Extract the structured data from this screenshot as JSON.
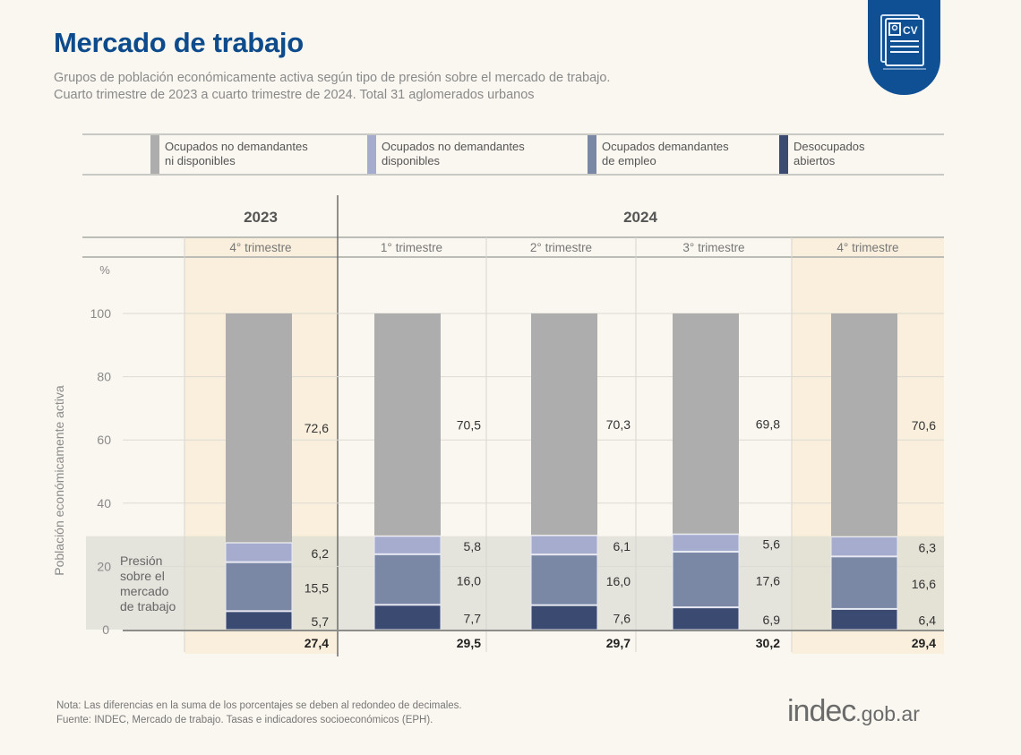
{
  "header": {
    "title": "Mercado de trabajo",
    "subtitle_line1": "Grupos de población económicamente activa según tipo de presión sobre el mercado de trabajo.",
    "subtitle_line2": "Cuarto trimestre de 2023 a cuarto trimestre de 2024. Total 31 aglomerados urbanos",
    "badge_icon": "cv-document-icon",
    "badge_text": "CV"
  },
  "legend": [
    {
      "label": "Ocupados no demandantes\nni disponibles",
      "color": "#adadad"
    },
    {
      "label": "Ocupados no demandantes\ndisponibles",
      "color": "#a6acce"
    },
    {
      "label": "Ocupados demandantes\nde empleo",
      "color": "#7a88a6"
    },
    {
      "label": "Desocupados\nabiertos",
      "color": "#3a4a70"
    }
  ],
  "chart_data": {
    "type": "bar",
    "stacked": true,
    "title": "Mercado de trabajo",
    "ylabel": "Población económicamente activa",
    "yunit": "%",
    "ylim": [
      0,
      100
    ],
    "yticks": [
      0,
      20,
      40,
      60,
      80,
      100
    ],
    "grid": true,
    "legend_position": "top",
    "year_groups": [
      {
        "label": "2023",
        "quarters": 1
      },
      {
        "label": "2024",
        "quarters": 4
      }
    ],
    "categories": [
      "4° trimestre",
      "1° trimestre",
      "2° trimestre",
      "3° trimestre",
      "4° trimestre"
    ],
    "highlighted_categories": [
      0,
      4
    ],
    "series": [
      {
        "name": "Desocupados abiertos",
        "color": "#3a4a70",
        "values": [
          5.7,
          7.7,
          7.6,
          6.9,
          6.4
        ]
      },
      {
        "name": "Ocupados demandantes de empleo",
        "color": "#7a88a6",
        "values": [
          15.5,
          16.0,
          16.0,
          17.6,
          16.6
        ]
      },
      {
        "name": "Ocupados no demandantes disponibles",
        "color": "#a6acce",
        "values": [
          6.2,
          5.8,
          6.1,
          5.6,
          6.3
        ]
      },
      {
        "name": "Ocupados no demandantes ni disponibles",
        "color": "#adadad",
        "values": [
          72.6,
          70.5,
          70.3,
          69.8,
          70.6
        ]
      }
    ],
    "pressure_totals": [
      27.4,
      29.5,
      29.7,
      30.2,
      29.4
    ],
    "pressure_label": "Presión\nsobre el\nmercado\nde trabajo"
  },
  "footer": {
    "note": "Nota: Las diferencias en la suma de los porcentajes se deben al redondeo de decimales.",
    "source": "Fuente: INDEC, Mercado de trabajo. Tasas e indicadores socioeconómicos (EPH).",
    "logo_main": "indec",
    "logo_suffix": ".gob.ar"
  }
}
